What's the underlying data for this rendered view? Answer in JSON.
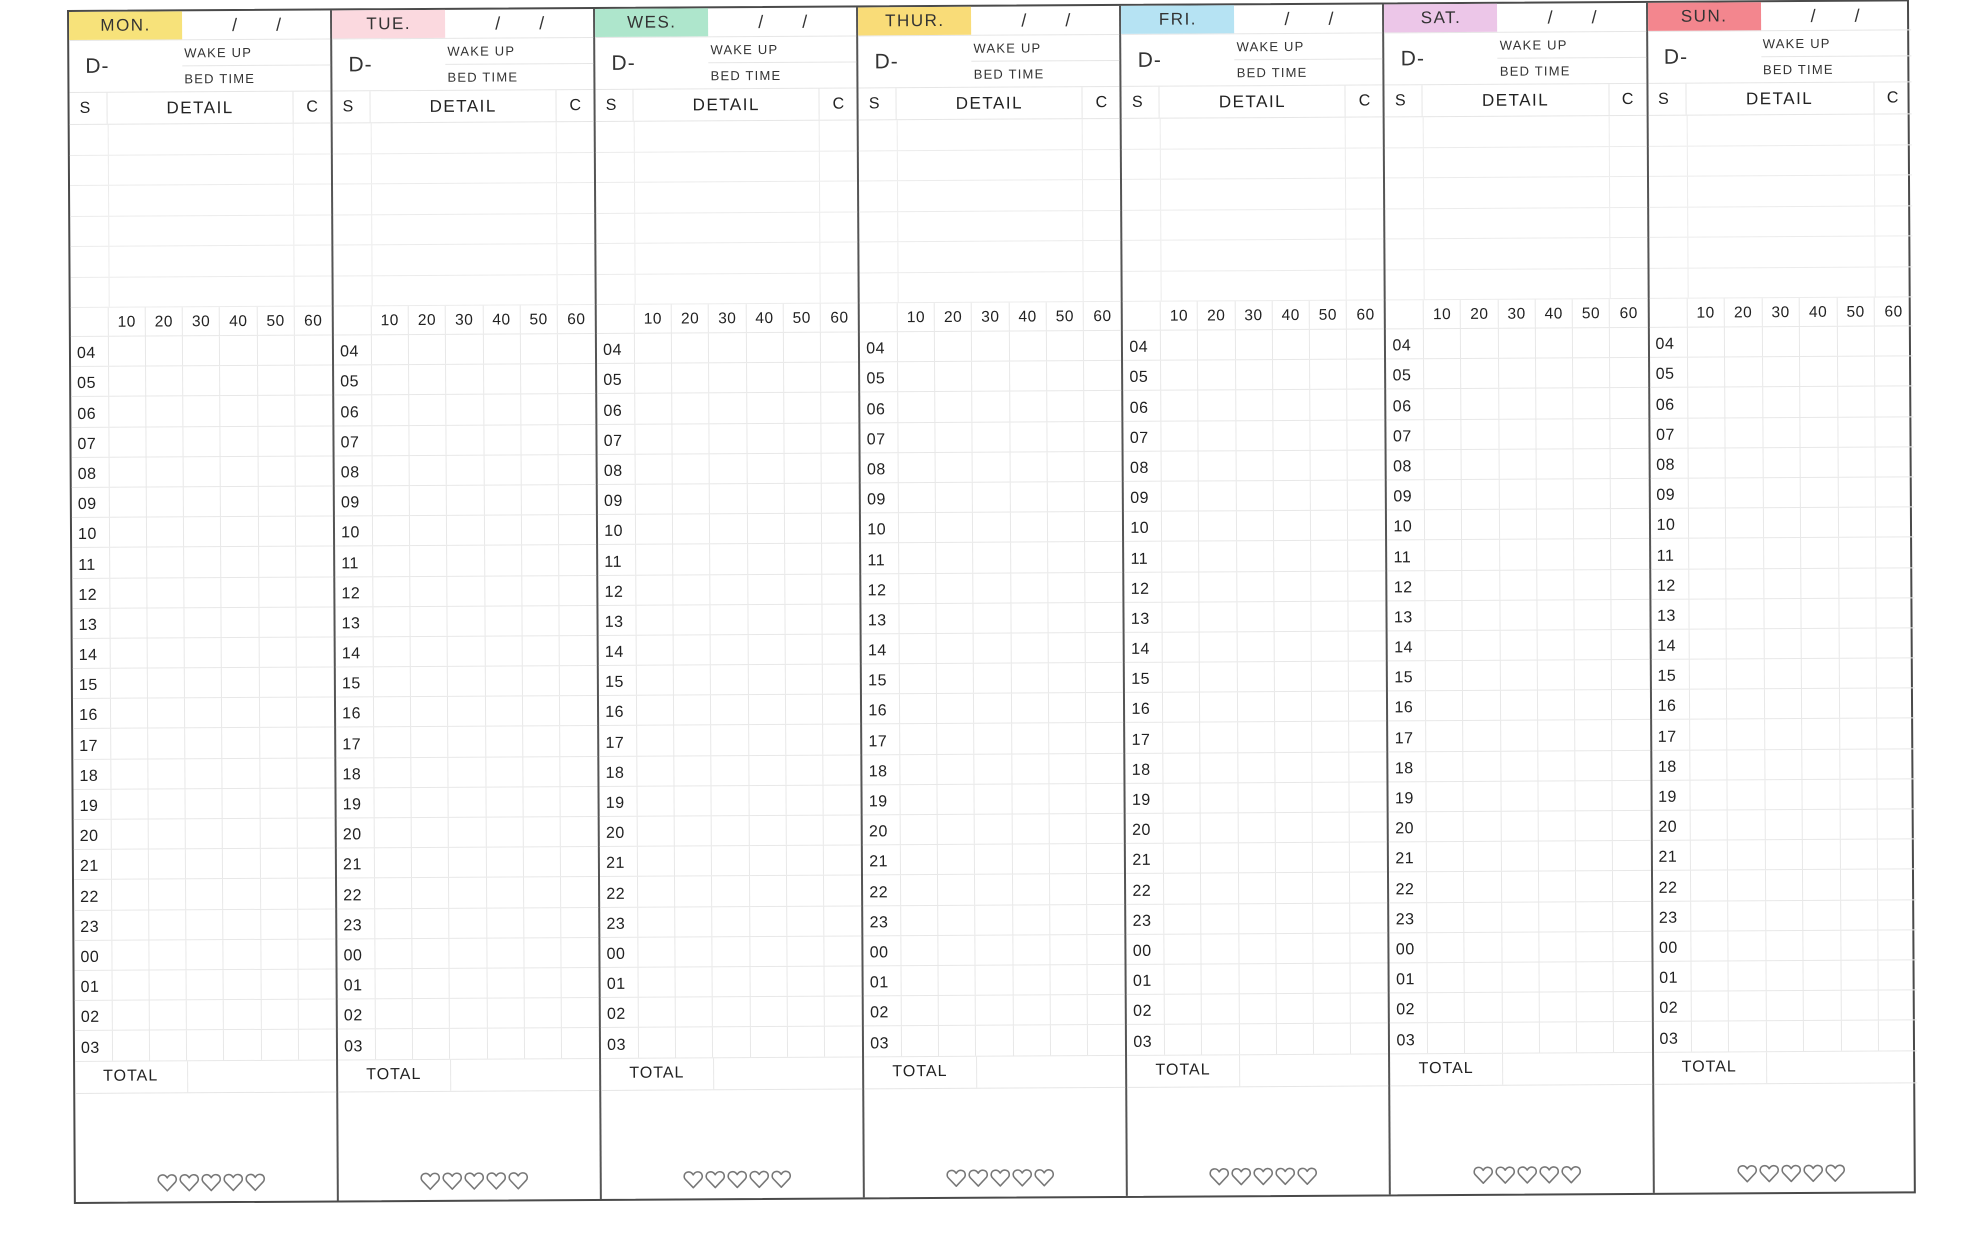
{
  "planner": {
    "date_separator": "/",
    "d_label": "D-",
    "wake_up_label": "WAKE UP",
    "bed_time_label": "BED TIME",
    "s_label": "S",
    "detail_label": "DETAIL",
    "c_label": "C",
    "total_label": "TOTAL",
    "minutes": [
      "10",
      "20",
      "30",
      "40",
      "50",
      "60"
    ],
    "hours": [
      "04",
      "05",
      "06",
      "07",
      "08",
      "09",
      "10",
      "11",
      "12",
      "13",
      "14",
      "15",
      "16",
      "17",
      "18",
      "19",
      "20",
      "21",
      "22",
      "23",
      "00",
      "01",
      "02",
      "03"
    ],
    "detail_rows": 6,
    "hearts_count": 5,
    "heart_icon": "heart-outline-icon",
    "days": [
      {
        "label": "MON.",
        "color": "#f7e27a"
      },
      {
        "label": "TUE.",
        "color": "#fbd9df"
      },
      {
        "label": "WES.",
        "color": "#aee6cc"
      },
      {
        "label": "THUR.",
        "color": "#f9dc78"
      },
      {
        "label": "FRI.",
        "color": "#b6e3f3"
      },
      {
        "label": "SAT.",
        "color": "#ecc6e8"
      },
      {
        "label": "SUN.",
        "color": "#f3868e"
      }
    ]
  }
}
